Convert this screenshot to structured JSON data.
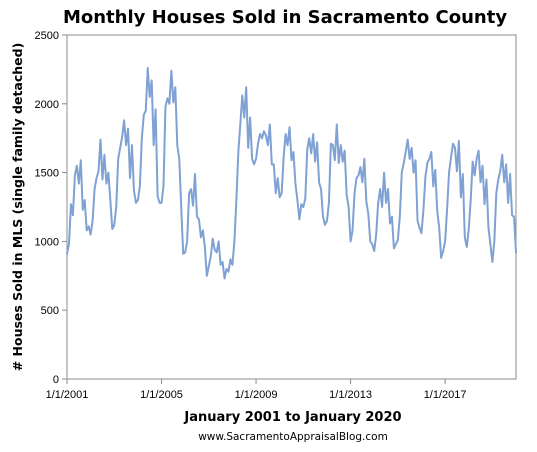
{
  "chart_data": {
    "type": "line",
    "title": "Monthly Houses Sold in Sacramento County",
    "xlabel": "January 2001 to January 2020",
    "ylabel": "# Houses Sold in MLS (single family detached)",
    "credit": "www.SacramentoAppraisalBlog.com",
    "ylim": [
      0,
      2500
    ],
    "y_ticks": [
      0,
      500,
      1000,
      1500,
      2000,
      2500
    ],
    "x_ticks": [
      "1/1/2001",
      "1/1/2005",
      "1/1/2009",
      "1/1/2013",
      "1/1/2017"
    ],
    "grid": false,
    "legend": "none",
    "line_color": "#7fa1d3",
    "series": [
      {
        "x_start": "2001-01",
        "frequency": "monthly",
        "values": [
          910,
          980,
          1270,
          1190,
          1480,
          1550,
          1420,
          1590,
          1230,
          1300,
          1080,
          1110,
          1050,
          1150,
          1380,
          1460,
          1510,
          1740,
          1450,
          1630,
          1420,
          1500,
          1300,
          1090,
          1120,
          1250,
          1600,
          1680,
          1760,
          1880,
          1700,
          1820,
          1460,
          1700,
          1370,
          1280,
          1300,
          1400,
          1750,
          1920,
          1950,
          2260,
          2050,
          2170,
          1700,
          1960,
          1330,
          1280,
          1280,
          1400,
          1980,
          2040,
          2000,
          2240,
          2010,
          2120,
          1700,
          1600,
          1250,
          910,
          920,
          1000,
          1350,
          1380,
          1260,
          1490,
          1180,
          1160,
          1030,
          1080,
          960,
          750,
          820,
          890,
          1020,
          940,
          920,
          1000,
          830,
          850,
          730,
          800,
          780,
          870,
          830,
          1000,
          1300,
          1650,
          1850,
          2060,
          1900,
          2120,
          1680,
          1900,
          1600,
          1560,
          1600,
          1710,
          1780,
          1750,
          1800,
          1770,
          1700,
          1850,
          1560,
          1560,
          1350,
          1460,
          1320,
          1350,
          1610,
          1780,
          1700,
          1830,
          1590,
          1650,
          1420,
          1300,
          1160,
          1270,
          1250,
          1310,
          1670,
          1750,
          1640,
          1780,
          1580,
          1720,
          1430,
          1380,
          1180,
          1120,
          1150,
          1280,
          1710,
          1700,
          1590,
          1850,
          1570,
          1700,
          1580,
          1660,
          1340,
          1250,
          1000,
          1080,
          1350,
          1460,
          1480,
          1540,
          1430,
          1600,
          1290,
          1200,
          1000,
          980,
          930,
          1050,
          1280,
          1380,
          1250,
          1500,
          1280,
          1380,
          1130,
          1180,
          950,
          980,
          1010,
          1180,
          1500,
          1570,
          1650,
          1740,
          1600,
          1680,
          1500,
          1590,
          1150,
          1100,
          1060,
          1230,
          1470,
          1570,
          1600,
          1650,
          1400,
          1520,
          1220,
          1100,
          880,
          930,
          1000,
          1230,
          1500,
          1610,
          1710,
          1680,
          1510,
          1730,
          1320,
          1490,
          1030,
          960,
          1090,
          1300,
          1580,
          1480,
          1600,
          1660,
          1430,
          1550,
          1270,
          1450,
          1100,
          980,
          850,
          1000,
          1350,
          1450,
          1510,
          1630,
          1430,
          1560,
          1280,
          1490,
          1190,
          1180,
          920
        ]
      }
    ]
  }
}
